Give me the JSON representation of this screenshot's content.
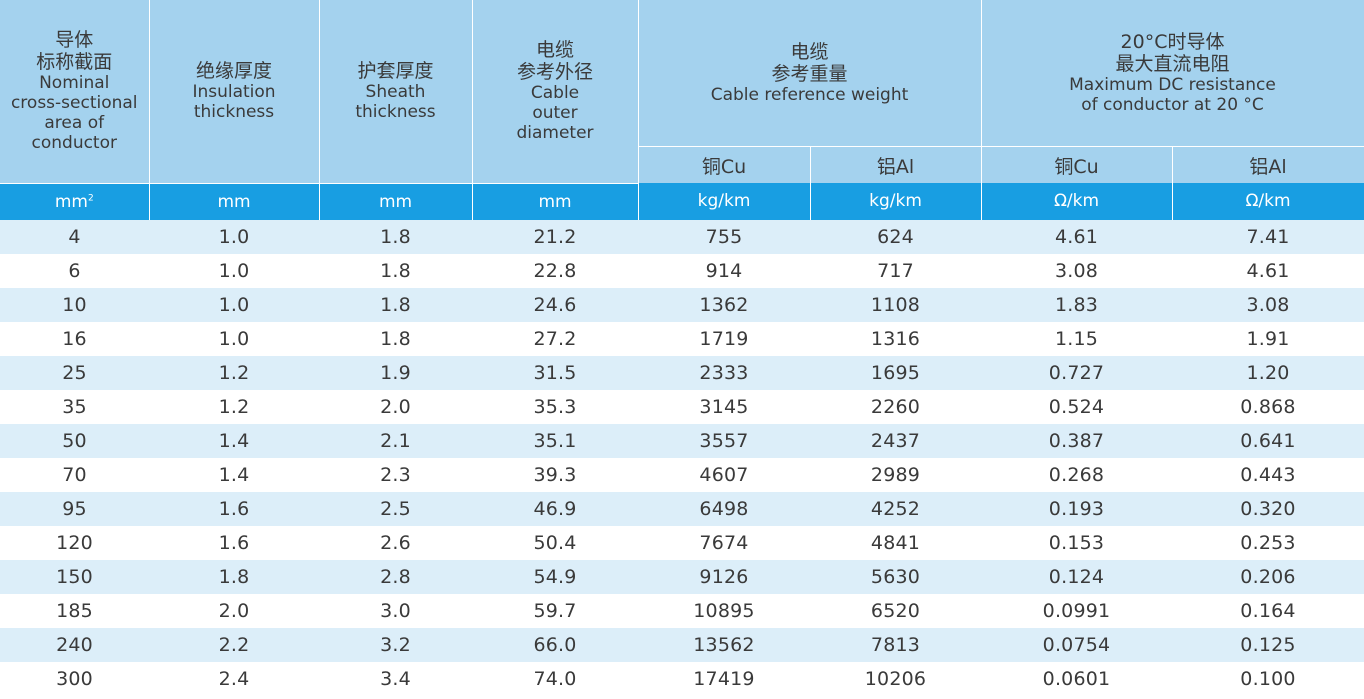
{
  "header": {
    "size": {
      "zh": "导体\n标称截面",
      "en": "Nominal\ncross-sectional\narea of\nconductor"
    },
    "insulation": {
      "zh": "绝缘厚度",
      "en": "Insulation\nthickness"
    },
    "sheath": {
      "zh": "护套厚度",
      "en": "Sheath\nthickness"
    },
    "diameter": {
      "zh": "电缆\n参考外径",
      "en": "Cable\nouter\ndiameter"
    },
    "weight": {
      "zh": "电缆\n参考重量",
      "en": "Cable reference weight"
    },
    "resistance": {
      "zh": "20°C时导体\n最大直流电阻",
      "en": "Maximum DC resistance\nof conductor at 20 °C"
    },
    "weight_cu": "铜Cu",
    "weight_al": "铝Al",
    "res_cu": "铜Cu",
    "res_al": "铝Al"
  },
  "units": {
    "size": "mm",
    "size_sup": "2",
    "insulation": "mm",
    "sheath": "mm",
    "diameter": "mm",
    "weight_cu": "kg/km",
    "weight_al": "kg/km",
    "res_cu": "Ω/km",
    "res_al": "Ω/km"
  },
  "rows": [
    [
      "4",
      "1.0",
      "1.8",
      "21.2",
      "755",
      "624",
      "4.61",
      "7.41"
    ],
    [
      "6",
      "1.0",
      "1.8",
      "22.8",
      "914",
      "717",
      "3.08",
      "4.61"
    ],
    [
      "10",
      "1.0",
      "1.8",
      "24.6",
      "1362",
      "1108",
      "1.83",
      "3.08"
    ],
    [
      "16",
      "1.0",
      "1.8",
      "27.2",
      "1719",
      "1316",
      "1.15",
      "1.91"
    ],
    [
      "25",
      "1.2",
      "1.9",
      "31.5",
      "2333",
      "1695",
      "0.727",
      "1.20"
    ],
    [
      "35",
      "1.2",
      "2.0",
      "35.3",
      "3145",
      "2260",
      "0.524",
      "0.868"
    ],
    [
      "50",
      "1.4",
      "2.1",
      "35.1",
      "3557",
      "2437",
      "0.387",
      "0.641"
    ],
    [
      "70",
      "1.4",
      "2.3",
      "39.3",
      "4607",
      "2989",
      "0.268",
      "0.443"
    ],
    [
      "95",
      "1.6",
      "2.5",
      "46.9",
      "6498",
      "4252",
      "0.193",
      "0.320"
    ],
    [
      "120",
      "1.6",
      "2.6",
      "50.4",
      "7674",
      "4841",
      "0.153",
      "0.253"
    ],
    [
      "150",
      "1.8",
      "2.8",
      "54.9",
      "9126",
      "5630",
      "0.124",
      "0.206"
    ],
    [
      "185",
      "2.0",
      "3.0",
      "59.7",
      "10895",
      "6520",
      "0.0991",
      "0.164"
    ],
    [
      "240",
      "2.2",
      "3.2",
      "66.0",
      "13562",
      "7813",
      "0.0754",
      "0.125"
    ],
    [
      "300",
      "2.4",
      "3.4",
      "74.0",
      "17419",
      "10206",
      "0.0601",
      "0.100"
    ]
  ],
  "colors": {
    "header_bg": "#a4d2ee",
    "unit_bg": "#189ee2",
    "stripe_bg": "#dceef9"
  }
}
